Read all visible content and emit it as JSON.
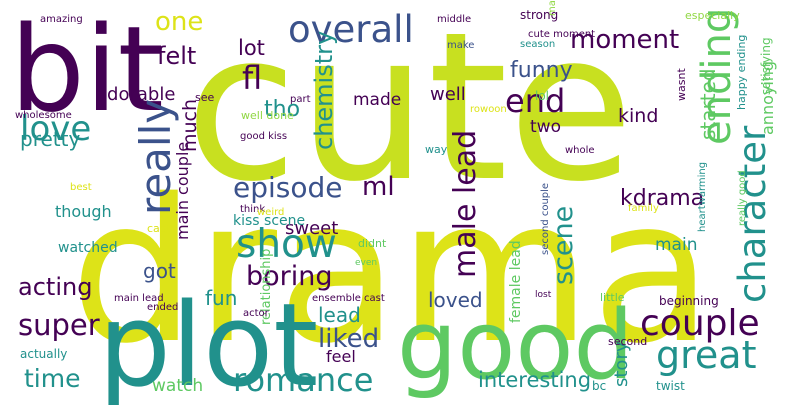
{
  "wordcloud": {
    "background": "#ffffff",
    "palette": {
      "dark_purple": "#440154",
      "indigo": "#3b528b",
      "blue": "#31688e",
      "teal_blue": "#2c728e",
      "teal": "#21918c",
      "green": "#35b779",
      "light_green": "#5ec962",
      "lime": "#90d743",
      "yellow_green": "#c8e020",
      "yellow": "#dde318"
    },
    "words": [
      {
        "text": "cute",
        "color": "yellow_green"
      },
      {
        "text": "drama",
        "color": "yellow"
      },
      {
        "text": "bit",
        "color": "dark_purple"
      },
      {
        "text": "plot",
        "color": "teal"
      },
      {
        "text": "good",
        "color": "light_green"
      },
      {
        "text": "overall",
        "color": "indigo"
      },
      {
        "text": "one",
        "color": "yellow"
      },
      {
        "text": "felt",
        "color": "dark_purple"
      },
      {
        "text": "lot",
        "color": "dark_purple"
      },
      {
        "text": "moment",
        "color": "dark_purple"
      },
      {
        "text": "ending",
        "color": "light_green"
      },
      {
        "text": "love",
        "color": "teal"
      },
      {
        "text": "fl",
        "color": "dark_purple"
      },
      {
        "text": "really",
        "color": "indigo"
      },
      {
        "text": "tho",
        "color": "teal"
      },
      {
        "text": "chemistry",
        "color": "teal"
      },
      {
        "text": "made",
        "color": "dark_purple"
      },
      {
        "text": "funny",
        "color": "indigo"
      },
      {
        "text": "end",
        "color": "dark_purple"
      },
      {
        "text": "well",
        "color": "dark_purple"
      },
      {
        "text": "male lead",
        "color": "dark_purple"
      },
      {
        "text": "kind",
        "color": "dark_purple"
      },
      {
        "text": "character",
        "color": "teal"
      },
      {
        "text": "started",
        "color": "light_green"
      },
      {
        "text": "annoying",
        "color": "light_green"
      },
      {
        "text": "two",
        "color": "dark_purple"
      },
      {
        "text": "episode",
        "color": "indigo"
      },
      {
        "text": "ml",
        "color": "dark_purple"
      },
      {
        "text": "much",
        "color": "dark_purple"
      },
      {
        "text": "main couple",
        "color": "dark_purple"
      },
      {
        "text": "pretty",
        "color": "teal"
      },
      {
        "text": "adorable",
        "color": "dark_purple"
      },
      {
        "text": "show",
        "color": "teal"
      },
      {
        "text": "kdrama",
        "color": "dark_purple"
      },
      {
        "text": "scene",
        "color": "teal"
      },
      {
        "text": "though",
        "color": "teal"
      },
      {
        "text": "sweet",
        "color": "dark_purple"
      },
      {
        "text": "kiss scene",
        "color": "teal"
      },
      {
        "text": "boring",
        "color": "dark_purple"
      },
      {
        "text": "got",
        "color": "indigo"
      },
      {
        "text": "main",
        "color": "teal"
      },
      {
        "text": "watched",
        "color": "teal"
      },
      {
        "text": "relationship",
        "color": "light_green"
      },
      {
        "text": "couple",
        "color": "dark_purple"
      },
      {
        "text": "great",
        "color": "teal"
      },
      {
        "text": "acting",
        "color": "dark_purple"
      },
      {
        "text": "fun",
        "color": "teal"
      },
      {
        "text": "loved",
        "color": "indigo"
      },
      {
        "text": "lead",
        "color": "teal"
      },
      {
        "text": "liked",
        "color": "indigo"
      },
      {
        "text": "super",
        "color": "dark_purple"
      },
      {
        "text": "female lead",
        "color": "light_green"
      },
      {
        "text": "time",
        "color": "teal"
      },
      {
        "text": "romance",
        "color": "teal"
      },
      {
        "text": "interesting",
        "color": "teal"
      },
      {
        "text": "story",
        "color": "teal"
      },
      {
        "text": "watch",
        "color": "light_green"
      },
      {
        "text": "feel",
        "color": "dark_purple"
      },
      {
        "text": "actually",
        "color": "teal"
      },
      {
        "text": "amazing",
        "color": "dark_purple"
      },
      {
        "text": "strong",
        "color": "dark_purple"
      },
      {
        "text": "middle",
        "color": "dark_purple"
      },
      {
        "text": "cute moment",
        "color": "dark_purple"
      },
      {
        "text": "many",
        "color": "lime"
      },
      {
        "text": "especially",
        "color": "lime"
      },
      {
        "text": "make",
        "color": "indigo"
      },
      {
        "text": "season",
        "color": "teal"
      },
      {
        "text": "satisfying",
        "color": "light_green"
      },
      {
        "text": "still",
        "color": "dark_purple"
      },
      {
        "text": "see",
        "color": "dark_purple"
      },
      {
        "text": "part",
        "color": "dark_purple"
      },
      {
        "text": "lol",
        "color": "light_green"
      },
      {
        "text": "happy ending",
        "color": "teal"
      },
      {
        "text": "wholesome",
        "color": "dark_purple"
      },
      {
        "text": "well done",
        "color": "lime"
      },
      {
        "text": "rowoon",
        "color": "yellow"
      },
      {
        "text": "wasnt",
        "color": "dark_purple"
      },
      {
        "text": "good kiss",
        "color": "dark_purple"
      },
      {
        "text": "way",
        "color": "teal"
      },
      {
        "text": "whole",
        "color": "dark_purple"
      },
      {
        "text": "heartwarming",
        "color": "teal"
      },
      {
        "text": "best",
        "color": "yellow"
      },
      {
        "text": "think",
        "color": "dark_purple"
      },
      {
        "text": "weird",
        "color": "yellow"
      },
      {
        "text": "family",
        "color": "yellow"
      },
      {
        "text": "really good",
        "color": "light_green"
      },
      {
        "text": "cast",
        "color": "yellow"
      },
      {
        "text": "didnt",
        "color": "light_green"
      },
      {
        "text": "even",
        "color": "light_green"
      },
      {
        "text": "second couple",
        "color": "indigo"
      },
      {
        "text": "main lead",
        "color": "dark_purple"
      },
      {
        "text": "actor",
        "color": "dark_purple"
      },
      {
        "text": "ensemble cast",
        "color": "dark_purple"
      },
      {
        "text": "lost",
        "color": "dark_purple"
      },
      {
        "text": "little",
        "color": "light_green"
      },
      {
        "text": "beginning",
        "color": "dark_purple"
      },
      {
        "text": "ended",
        "color": "dark_purple"
      },
      {
        "text": "second",
        "color": "dark_purple"
      },
      {
        "text": "bc",
        "color": "teal"
      },
      {
        "text": "twist",
        "color": "teal"
      }
    ]
  }
}
